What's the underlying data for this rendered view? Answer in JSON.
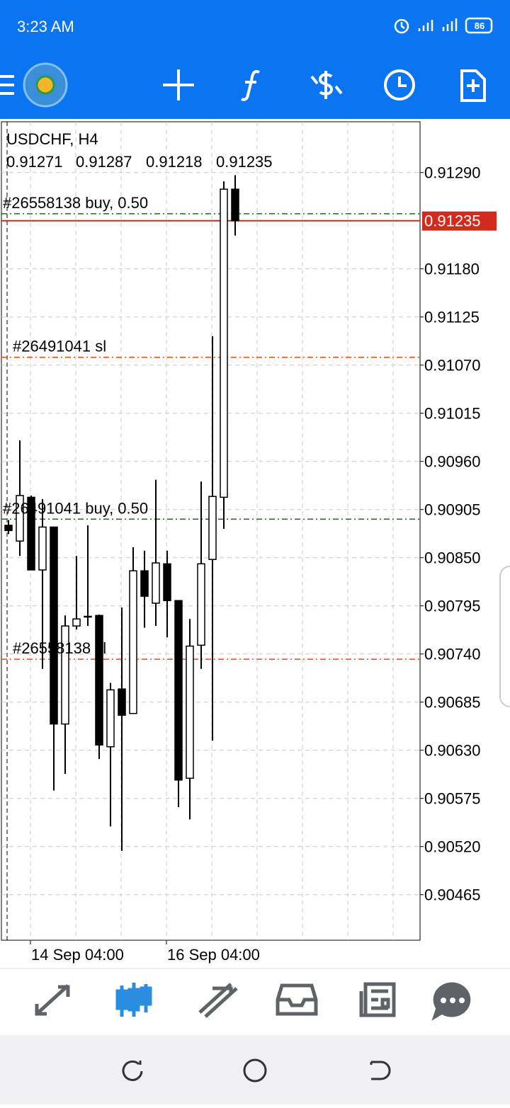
{
  "status_bar": {
    "time": "3:23 AM",
    "battery": "86"
  },
  "chart_data": {
    "type": "candlestick",
    "title": "USDCHF, H4",
    "categories": [
      null,
      null,
      "14 Sep 04:00",
      null,
      null,
      null,
      null,
      null,
      null,
      null,
      null,
      null,
      null,
      null,
      "16 Sep 04:00",
      null,
      null,
      null,
      null,
      null,
      null
    ],
    "open": [
      0.90887,
      0.90869,
      0.90919,
      0.90836,
      0.90885,
      0.9066,
      0.90772,
      0.90783,
      0.90784,
      0.90634,
      0.907,
      0.90672,
      0.90835,
      0.90798,
      0.90843,
      0.90801,
      0.90598,
      0.9075,
      0.90848,
      0.90919,
      0.91271
    ],
    "high": [
      0.90893,
      0.90984,
      0.90921,
      0.90917,
      0.90885,
      0.90784,
      0.90852,
      0.90887,
      0.90785,
      0.90707,
      0.90793,
      0.90862,
      0.90858,
      0.90939,
      0.90858,
      0.90801,
      0.9078,
      0.90937,
      0.91103,
      0.9128,
      0.91287
    ],
    "low": [
      0.90877,
      0.90852,
      0.90836,
      0.90723,
      0.90584,
      0.90603,
      0.90768,
      0.90772,
      0.9062,
      0.90543,
      0.90515,
      0.90672,
      0.9077,
      0.90772,
      0.90759,
      0.90565,
      0.90551,
      0.90723,
      0.90641,
      0.90883,
      0.91218
    ],
    "close": [
      0.90881,
      0.90921,
      0.90836,
      0.90885,
      0.9066,
      0.90772,
      0.9078,
      0.90783,
      0.90636,
      0.90699,
      0.9067,
      0.90835,
      0.90806,
      0.90844,
      0.90801,
      0.90596,
      0.90749,
      0.90843,
      0.9092,
      0.91271,
      0.91235
    ],
    "ylim": [
      0.90413,
      0.91348
    ],
    "yticks": [
      {
        "value": 0.9129,
        "label": "0.91290"
      },
      {
        "value": 0.9118,
        "label": "0.91180"
      },
      0.91125,
      {
        "value": 0.9107,
        "label": "0.91070"
      },
      0.91015,
      {
        "value": 0.9096,
        "label": "0.90960"
      },
      0.90905,
      {
        "value": 0.9085,
        "label": "0.90850"
      },
      0.90795,
      {
        "value": 0.9074,
        "label": "0.90740"
      },
      0.90685,
      {
        "value": 0.9063,
        "label": "0.90630"
      },
      0.90575,
      {
        "value": 0.9052,
        "label": "0.90520"
      },
      0.90465
    ],
    "grid": true,
    "up_color": "#ffffff",
    "down_color": "#000000",
    "levels": [
      {
        "label": "#26558138 buy, 0.50",
        "value": 0.91243,
        "color": "#0a7a0a"
      },
      {
        "label": "#26491041 sl",
        "value": 0.91079,
        "color": "#ff4500"
      },
      {
        "label": "#26491041 buy, 0.50",
        "value": 0.90894,
        "color": "#0a7a0a"
      },
      {
        "label": "#26558138 sl",
        "value": 0.90734,
        "color": "#ff4500"
      }
    ],
    "price_line": {
      "value": 0.91235,
      "color": "#d42a1e"
    }
  }
}
